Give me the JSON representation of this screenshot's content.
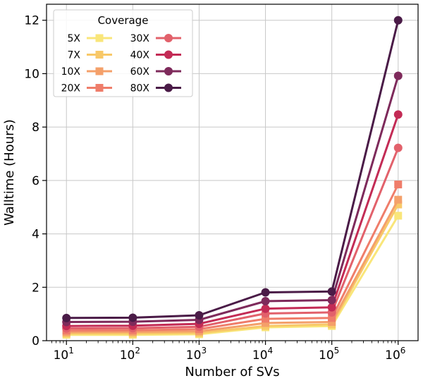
{
  "chart_data": {
    "type": "line",
    "xscale": "log",
    "x": [
      10,
      100,
      1000,
      10000,
      100000,
      1000000
    ],
    "x_tick_labels": [
      {
        "base": "10",
        "exp": "1"
      },
      {
        "base": "10",
        "exp": "2"
      },
      {
        "base": "10",
        "exp": "3"
      },
      {
        "base": "10",
        "exp": "4"
      },
      {
        "base": "10",
        "exp": "5"
      },
      {
        "base": "10",
        "exp": "6"
      }
    ],
    "y_ticks": [
      "0",
      "2",
      "4",
      "6",
      "8",
      "10",
      "12"
    ],
    "ylim": [
      0,
      12.6
    ],
    "xlabel": "Number of SVs",
    "ylabel": "Walltime (Hours)",
    "grid": true,
    "legend": {
      "title": "Coverage",
      "placement": "top-left",
      "columns": 2
    },
    "series": [
      {
        "name": "5X",
        "color": "#f9e67a",
        "marker": "square",
        "values": [
          0.22,
          0.22,
          0.24,
          0.5,
          0.55,
          4.68
        ]
      },
      {
        "name": "7X",
        "color": "#f8c868",
        "marker": "square",
        "values": [
          0.27,
          0.27,
          0.29,
          0.55,
          0.61,
          5.1
        ]
      },
      {
        "name": "10X",
        "color": "#f4a06a",
        "marker": "square",
        "values": [
          0.32,
          0.33,
          0.35,
          0.66,
          0.7,
          5.28
        ]
      },
      {
        "name": "20X",
        "color": "#ef7d6a",
        "marker": "square",
        "values": [
          0.38,
          0.39,
          0.43,
          0.82,
          0.85,
          5.85
        ]
      },
      {
        "name": "30X",
        "color": "#e2616b",
        "marker": "circle",
        "values": [
          0.46,
          0.47,
          0.52,
          1.02,
          1.06,
          7.22
        ]
      },
      {
        "name": "40X",
        "color": "#c32b55",
        "marker": "circle",
        "values": [
          0.55,
          0.56,
          0.63,
          1.2,
          1.25,
          8.47
        ]
      },
      {
        "name": "60X",
        "color": "#7e2a5b",
        "marker": "circle",
        "values": [
          0.7,
          0.71,
          0.78,
          1.48,
          1.52,
          9.92
        ]
      },
      {
        "name": "80X",
        "color": "#4a1b47",
        "marker": "circle",
        "values": [
          0.85,
          0.86,
          0.95,
          1.81,
          1.84,
          12.0
        ]
      }
    ]
  }
}
